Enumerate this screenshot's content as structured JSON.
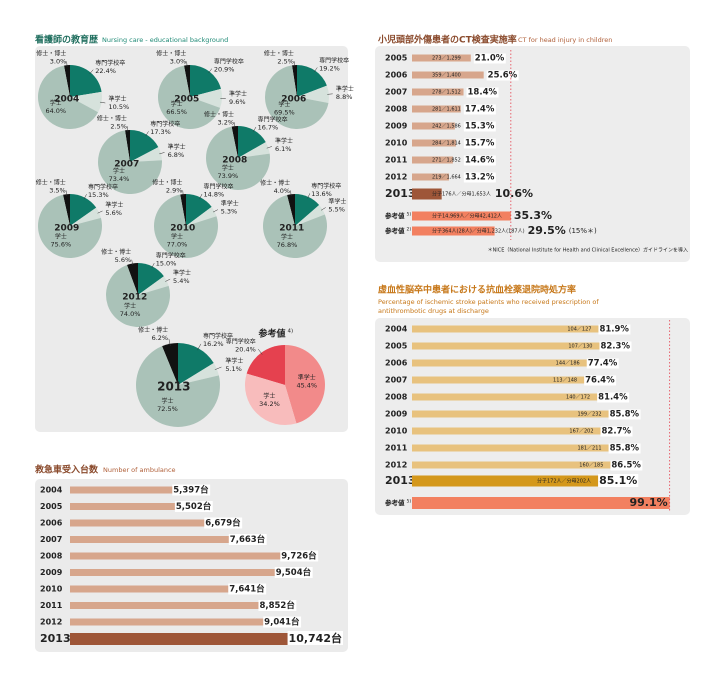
{
  "chart_data": [
    {
      "type": "pie",
      "title": "看護師の教育歴",
      "subtitle": "Nursing care - educational background",
      "categories": [
        "修士・博士",
        "専門学校卒",
        "準学士",
        "学士"
      ],
      "colors": [
        "#111111",
        "#0f7a68",
        "#d6e2dc",
        "#aac2b8"
      ],
      "pies": [
        {
          "label": "2004",
          "values": [
            3.0,
            22.4,
            10.5,
            64.0
          ],
          "value_labels": [
            "3.0%",
            "22.4%",
            "10.5%",
            "64.0%"
          ]
        },
        {
          "label": "2005",
          "values": [
            3.0,
            20.9,
            9.6,
            66.5
          ],
          "value_labels": [
            "3.0%",
            "20.9%",
            "9.6%",
            "66.5%"
          ]
        },
        {
          "label": "2006",
          "values": [
            2.5,
            19.2,
            8.8,
            69.5
          ],
          "value_labels": [
            "2.5%",
            "19.2%",
            "8.8%",
            "69.5%"
          ]
        },
        {
          "label": "2007",
          "values": [
            2.5,
            17.3,
            6.8,
            73.4
          ],
          "value_labels": [
            "2.5%",
            "17.3%",
            "6.8%",
            "73.4%"
          ]
        },
        {
          "label": "2008",
          "values": [
            3.2,
            16.7,
            6.1,
            73.9
          ],
          "value_labels": [
            "3.2%",
            "16.7%",
            "6.1%",
            "73.9%"
          ]
        },
        {
          "label": "2009",
          "values": [
            3.5,
            15.3,
            5.6,
            75.6
          ],
          "value_labels": [
            "3.5%",
            "15.3%",
            "5.6%",
            "75.6%"
          ]
        },
        {
          "label": "2010",
          "values": [
            2.9,
            14.8,
            5.3,
            77.0
          ],
          "value_labels": [
            "2.9%",
            "14.8%",
            "5.3%",
            "77.0%"
          ]
        },
        {
          "label": "2011",
          "values": [
            4.0,
            13.6,
            5.5,
            76.8
          ],
          "value_labels": [
            "4.0%",
            "13.6%",
            "5.5%",
            "76.8%"
          ]
        },
        {
          "label": "2012",
          "values": [
            5.6,
            15.0,
            5.4,
            74.0
          ],
          "value_labels": [
            "5.6%",
            "15.0%",
            "5.4%",
            "74.0%"
          ]
        },
        {
          "label": "2013",
          "values": [
            6.2,
            16.2,
            5.1,
            72.5
          ],
          "value_labels": [
            "6.2%",
            "16.2%",
            "5.1%",
            "72.5%"
          ]
        }
      ],
      "reference": {
        "label": "参考値",
        "note": "4)",
        "categories": [
          "専門学校卒",
          "準学士",
          "学士"
        ],
        "colors": [
          "#e5414f",
          "#f28a8a",
          "#f8bcbc"
        ],
        "values": [
          20.4,
          45.4,
          34.2
        ],
        "value_labels": [
          "20.4%",
          "45.4%",
          "34.2%"
        ]
      }
    },
    {
      "type": "bar",
      "title": "小児頭部外傷患者のCT検査実施率",
      "subtitle": "CT for head injury in children",
      "categories": [
        "2005",
        "2006",
        "2007",
        "2008",
        "2009",
        "2010",
        "2011",
        "2012",
        "2013"
      ],
      "values": [
        21.0,
        25.6,
        18.4,
        17.4,
        15.3,
        15.7,
        14.6,
        13.2,
        10.6
      ],
      "value_labels": [
        "21.0%",
        "25.6%",
        "18.4%",
        "17.4%",
        "15.3%",
        "15.7%",
        "14.6%",
        "13.2%",
        "10.6%"
      ],
      "counts": [
        "273／1,299",
        "359／1,400",
        "278／1,512",
        "281／1,611",
        "242／1,586",
        "284／1,814",
        "271／1,852",
        "219／1,664",
        "分子176人／分母1,653人"
      ],
      "color": "#d7a68c",
      "highlight_color": "#9e5638",
      "reference_color": "#f28060",
      "references": [
        {
          "label": "参考値",
          "note": "5)",
          "count": "分子14,969人／分母42,412人",
          "value": 35.3,
          "value_label": "35.3%"
        },
        {
          "label": "参考値",
          "note": "2)",
          "count": "分子364人(28人)／分母1,232人(187人)",
          "value": 29.5,
          "value_label": "29.5%",
          "extra": "(15%＊)"
        }
      ],
      "footnote": "＊NICE（National Institute for Health and Clinical Excellence）ガイドラインを導入"
    },
    {
      "type": "bar",
      "title": "虚血性脳卒中患者における抗血栓薬退院時処方率",
      "subtitle": [
        "Percentage of ischemic stroke patients who received prescription of",
        "antithrombotic drugs at discharge"
      ],
      "categories": [
        "2004",
        "2005",
        "2006",
        "2007",
        "2008",
        "2009",
        "2010",
        "2011",
        "2012",
        "2013"
      ],
      "values": [
        81.9,
        82.3,
        77.4,
        76.4,
        81.4,
        85.8,
        82.7,
        85.8,
        86.5,
        85.1
      ],
      "value_labels": [
        "81.9%",
        "82.3%",
        "77.4%",
        "76.4%",
        "81.4%",
        "85.8%",
        "82.7%",
        "85.8%",
        "86.5%",
        "85.1%"
      ],
      "counts": [
        "104／127",
        "107／130",
        "144／186",
        "113／148",
        "140／172",
        "199／232",
        "167／202",
        "181／211",
        "160／185",
        "分子172人／分母202人"
      ],
      "color": "#e8c27e",
      "highlight_color": "#d4981c",
      "reference_color": "#f28060",
      "references": [
        {
          "label": "参考値",
          "note": "5)",
          "value": 99.1,
          "value_label": "99.1%"
        }
      ]
    },
    {
      "type": "bar",
      "title": "救急車受入台数",
      "subtitle": "Number of ambulance",
      "categories": [
        "2004",
        "2005",
        "2006",
        "2007",
        "2008",
        "2009",
        "2010",
        "2011",
        "2012",
        "2013"
      ],
      "values": [
        5397,
        5502,
        6679,
        7663,
        9726,
        9504,
        7641,
        8852,
        9041,
        10742
      ],
      "value_labels": [
        "5,397台",
        "5,502台",
        "6,679台",
        "7,663台",
        "9,726台",
        "9,504台",
        "7,641台",
        "8,852台",
        "9,041台",
        "10,742台"
      ],
      "color": "#d7a68c",
      "highlight_color": "#9e5638"
    }
  ]
}
